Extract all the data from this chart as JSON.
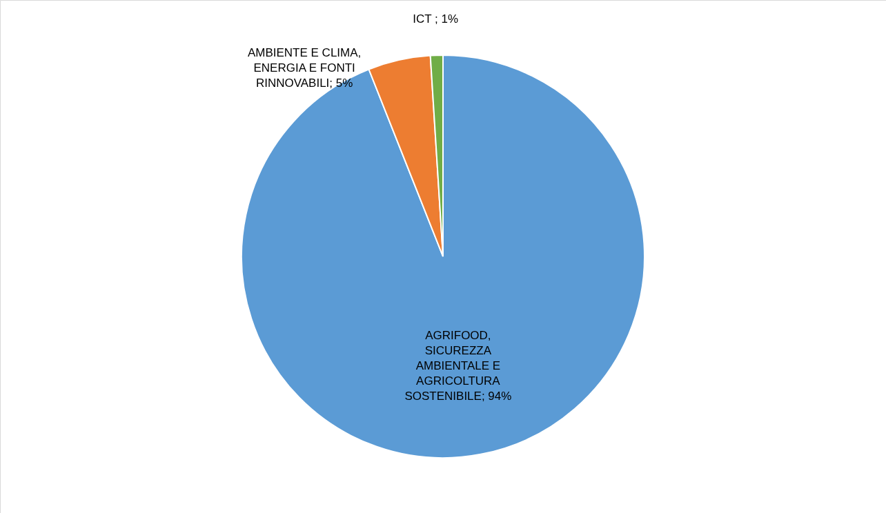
{
  "chart_data": {
    "type": "pie",
    "categories": [
      "AGRIFOOD, SICUREZZA AMBIENTALE E AGRICOLTURA SOSTENIBILE",
      "AMBIENTE E CLIMA, ENERGIA E FONTI RINNOVABILI",
      "ICT "
    ],
    "values": [
      94,
      5,
      1
    ],
    "colors": [
      "#5b9bd5",
      "#ed7d31",
      "#70ad47"
    ],
    "value_labels": [
      "94%",
      "5%",
      "1%"
    ],
    "legend": false
  }
}
